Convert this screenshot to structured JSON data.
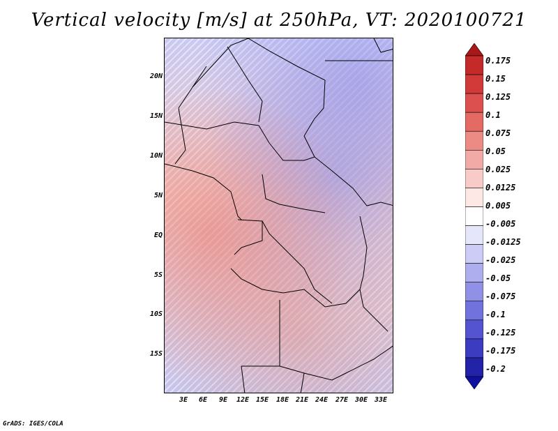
{
  "title": "Vertical velocity [m/s] at 250hPa, VT: 2020100721",
  "map": {
    "lat_ticks": [
      "20N",
      "15N",
      "10N",
      "5N",
      "EQ",
      "5S",
      "10S",
      "15S"
    ],
    "lon_ticks": [
      "3E",
      "6E",
      "9E",
      "12E",
      "15E",
      "18E",
      "21E",
      "24E",
      "27E",
      "30E",
      "33E"
    ]
  },
  "colorbar": {
    "levels": [
      "0.175",
      "0.15",
      "0.125",
      "0.1",
      "0.075",
      "0.05",
      "0.025",
      "0.0125",
      "0.005",
      "-0.005",
      "-0.0125",
      "-0.025",
      "-0.05",
      "-0.075",
      "-0.1",
      "-0.125",
      "-0.175",
      "-0.2"
    ],
    "colors": [
      "#a81818",
      "#c42a2a",
      "#d23a3a",
      "#dc5050",
      "#e46a64",
      "#ec8a84",
      "#f2aaa6",
      "#f8cac8",
      "#fde8e6",
      "#ffffff",
      "#e6e6fb",
      "#ccccf6",
      "#aeaeee",
      "#9090e6",
      "#7272dc",
      "#5454d0",
      "#3c3cc0",
      "#2323a8",
      "#1010a0"
    ]
  },
  "footer": "GrADS: IGES/COLA"
}
